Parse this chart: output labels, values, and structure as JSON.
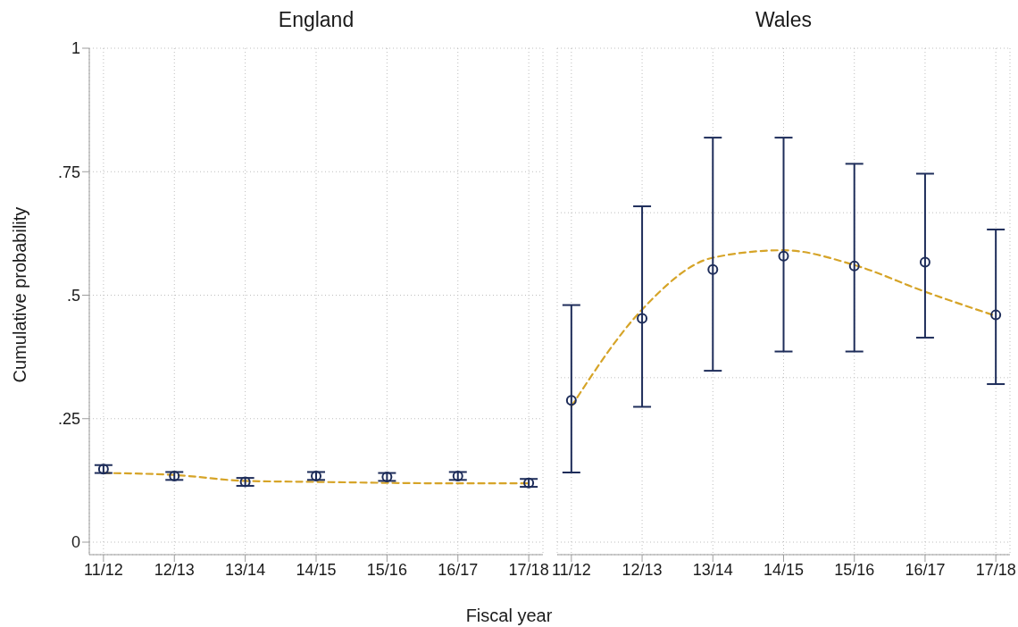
{
  "chart_data": [
    {
      "type": "scatter",
      "title": "England",
      "xlabel": "Fiscal year",
      "ylabel": "Cumulative probability",
      "categories": [
        "11/12",
        "12/13",
        "13/14",
        "14/15",
        "15/16",
        "16/17",
        "17/18"
      ],
      "ylim": [
        0,
        1
      ],
      "yticks": [
        0,
        {
          "value": 0.25,
          "label": ".25"
        },
        {
          "value": 0.5,
          "label": ".5"
        },
        {
          "value": 0.75,
          "label": ".75"
        },
        1
      ],
      "grid": true,
      "series": [
        {
          "color": "#1e2d5a",
          "marker": "circle",
          "values": [
            0.148,
            0.134,
            0.122,
            0.134,
            0.132,
            0.134,
            0.12
          ],
          "errors": [
            0.008,
            0.008,
            0.008,
            0.008,
            0.008,
            0.008,
            0.008
          ]
        },
        {
          "type": "line",
          "color": "#d6a428",
          "line_style": "dashed",
          "values": [
            0.14,
            0.136,
            0.124,
            0.122,
            0.12,
            0.119,
            0.119
          ]
        }
      ]
    },
    {
      "type": "scatter",
      "title": "Wales",
      "categories": [
        "11/12",
        "12/13",
        "13/14",
        "14/15",
        "15/16",
        "16/17",
        "17/18"
      ],
      "ylim": [
        0,
        1
      ],
      "yticks": [
        {
          "value": 0,
          "label": null
        },
        {
          "value": 0.333,
          "label": null
        },
        {
          "value": 0.667,
          "label": null
        },
        {
          "value": 1,
          "label": null
        }
      ],
      "grid": true,
      "tick_labels": "x",
      "series": [
        {
          "color": "#1e2d5a",
          "marker": "circle",
          "values": [
            0.287,
            0.453,
            0.552,
            0.579,
            0.559,
            0.567,
            0.46
          ],
          "errors": [
            [
              0.141,
              0.48
            ],
            [
              0.274,
              0.68
            ],
            [
              0.347,
              0.819
            ],
            [
              0.386,
              0.819
            ],
            [
              0.386,
              0.766
            ],
            [
              0.414,
              0.746
            ],
            [
              0.32,
              0.633
            ]
          ]
        },
        {
          "type": "line",
          "color": "#d6a428",
          "line_style": "dashed",
          "values": [
            0.275,
            0.471,
            0.576,
            0.591,
            0.561,
            0.507,
            0.458
          ]
        }
      ]
    }
  ]
}
